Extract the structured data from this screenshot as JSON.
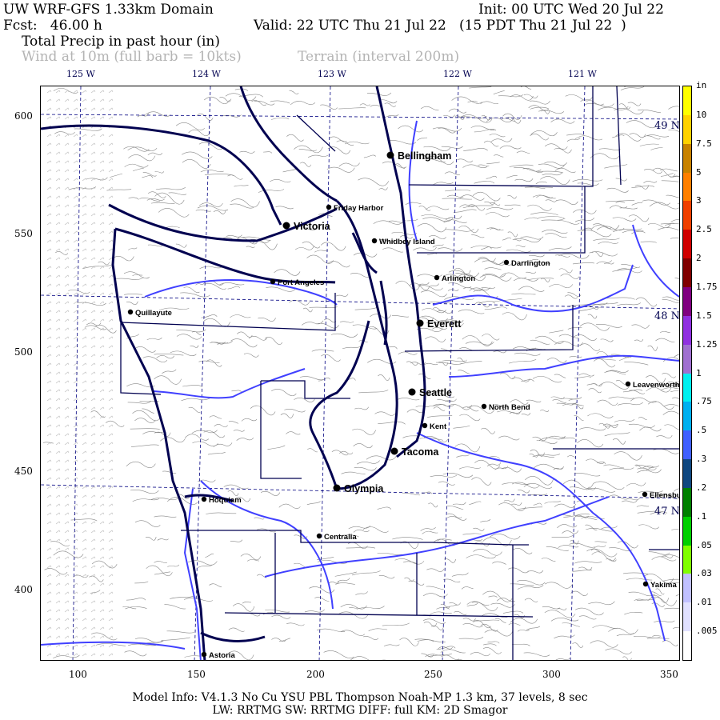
{
  "header": {
    "title": "UW WRF-GFS 1.33km Domain",
    "init": "Init: 00 UTC Wed 20 Jul 22",
    "fcst": "Fcst:   46.00 h",
    "valid": "Valid: 22 UTC Thu 21 Jul 22   (15 PDT Thu 21 Jul 22  )",
    "field": "Total Precip in past hour (in)",
    "overlay_wind": "Wind at 10m (full barb = 10kts)",
    "overlay_terrain": "Terrain (interval 200m)"
  },
  "longitudes": [
    "125 W",
    "124 W",
    "123 W",
    "122 W",
    "121 W"
  ],
  "latitudes": [
    "49 N",
    "48 N",
    "47 N"
  ],
  "y_ticks": [
    "600",
    "550",
    "500",
    "450",
    "400"
  ],
  "x_ticks": [
    "100",
    "150",
    "200",
    "250",
    "300",
    "350"
  ],
  "colorbar": {
    "unit": "in",
    "labels": [
      "10",
      "7.5",
      "5",
      "3",
      "2.5",
      "2",
      "1.75",
      "1.5",
      "1.25",
      "1",
      ".75",
      ".5",
      ".3",
      ".2",
      ".1",
      ".05",
      ".03",
      ".01",
      ".005"
    ],
    "colors": [
      "#ffff00",
      "#ffd200",
      "#c88200",
      "#ff8000",
      "#f04000",
      "#d00000",
      "#800000",
      "#800080",
      "#9030e0",
      "#a070d0",
      "#00f0f0",
      "#00b0f0",
      "#4060ff",
      "#104880",
      "#008000",
      "#00d000",
      "#80ff00",
      "#c0c0ff",
      "#e0e0ff",
      "#ffffff"
    ]
  },
  "colors": {
    "coast": "#000050",
    "rivers": "#4040ff",
    "terrain": "#888888",
    "grid": "#000080"
  },
  "cities": [
    {
      "name": "Bellingham",
      "major": true
    },
    {
      "name": "Friday Harbor",
      "major": false
    },
    {
      "name": "Victoria",
      "major": true
    },
    {
      "name": "Whidbey Island",
      "major": false
    },
    {
      "name": "Darrington",
      "major": false
    },
    {
      "name": "Arlington",
      "major": false
    },
    {
      "name": "Port Angeles",
      "major": false
    },
    {
      "name": "Quillayute",
      "major": false
    },
    {
      "name": "Everett",
      "major": true
    },
    {
      "name": "Seattle",
      "major": true
    },
    {
      "name": "North Bend",
      "major": false
    },
    {
      "name": "Leavenworth",
      "major": false
    },
    {
      "name": "Kent",
      "major": false
    },
    {
      "name": "Tacoma",
      "major": true
    },
    {
      "name": "Olympia",
      "major": true
    },
    {
      "name": "Hoquiam",
      "major": false
    },
    {
      "name": "Ellensburg",
      "major": false
    },
    {
      "name": "Centralia",
      "major": false
    },
    {
      "name": "Yakima",
      "major": false
    },
    {
      "name": "Astoria",
      "major": false
    }
  ],
  "footer": {
    "line1": "Model Info: V4.1.3    No Cu    YSU PBL   Thompson     Noah-MP    1.3 km,   37 levels,     8 sec",
    "line2": "LW: RRTMG SW: RRTMG    DIFF: full    KM: 2D Smagor"
  }
}
